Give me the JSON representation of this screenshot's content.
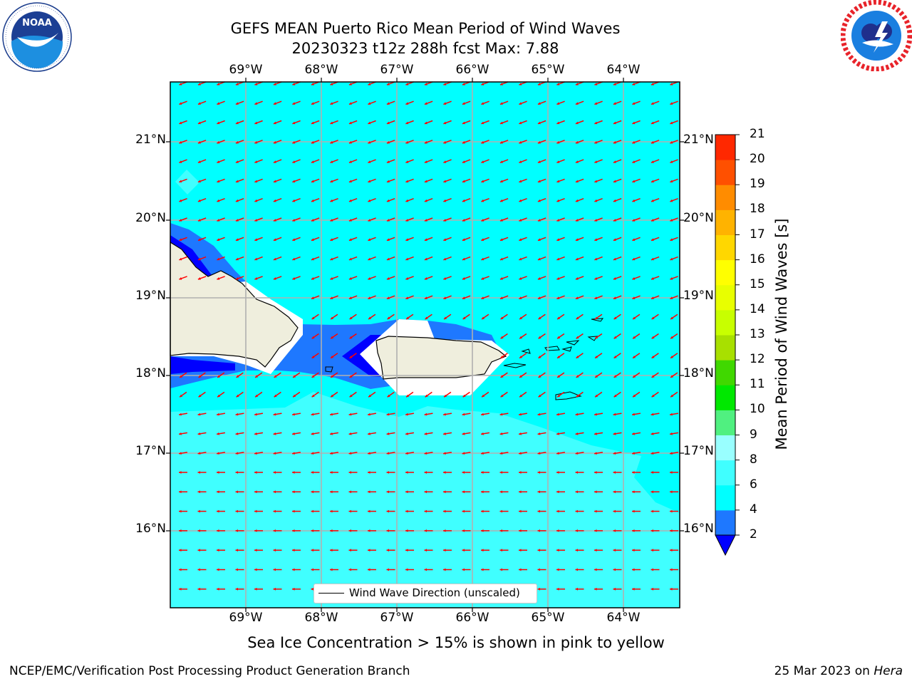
{
  "header": {
    "title_line1": "GEFS MEAN Puerto Rico Mean Period of Wind Waves",
    "title_line2": "20230323 t12z 288h fcst   Max: 7.88"
  },
  "logos": {
    "left": {
      "name": "noaa-logo",
      "text": "NOAA",
      "ring_text": "NATIONAL OCEANIC AND ATMOSPHERIC ADMINISTRATION · U.S. DEPARTMENT OF COMMERCE"
    },
    "right": {
      "name": "nws-logo",
      "ring_text": "NATIONAL WEATHER SERVICE"
    }
  },
  "map": {
    "lon_labels": [
      "69°W",
      "68°W",
      "67°W",
      "66°W",
      "65°W",
      "64°W"
    ],
    "lat_labels": [
      "21°N",
      "20°N",
      "19°N",
      "18°N",
      "17°N",
      "16°N"
    ],
    "extent": {
      "lon_min": -70.0,
      "lon_max": -63.25,
      "lat_min": 15.0,
      "lat_max": 21.75
    },
    "grid": true,
    "ocean_color": "#00ffff",
    "land_color": "#efeedd",
    "vector_color": "#ff0000"
  },
  "legend": {
    "label": "Wind Wave Direction (unscaled)"
  },
  "colorbar": {
    "label": "Mean Period of Wind Waves [s]",
    "ticks": [
      "2",
      "4",
      "6",
      "8",
      "9",
      "10",
      "11",
      "12",
      "13",
      "14",
      "15",
      "16",
      "17",
      "18",
      "19",
      "20",
      "21"
    ],
    "colors": [
      "#1e78ff",
      "#00ffff",
      "#40ffff",
      "#99ffff",
      "#50f080",
      "#00e800",
      "#40d800",
      "#a8e000",
      "#c8ff00",
      "#e8ff00",
      "#ffff00",
      "#ffd700",
      "#ffb300",
      "#ff8c00",
      "#ff5000",
      "#ff2800",
      "#ff0000"
    ],
    "under_color": "#0000ff"
  },
  "chart_data": {
    "type": "heatmap",
    "title": "GEFS MEAN Puerto Rico Mean Period of Wind Waves",
    "subtitle": "20230323 t12z 288h fcst   Max: 7.88",
    "variable": "Mean Period of Wind Waves [s]",
    "max_value": 7.88,
    "color_levels": [
      2,
      4,
      6,
      8,
      9,
      10,
      11,
      12,
      13,
      14,
      15,
      16,
      17,
      18,
      19,
      20,
      21
    ],
    "x_ticks": [
      "69°W",
      "68°W",
      "67°W",
      "66°W",
      "65°W",
      "64°W"
    ],
    "y_ticks": [
      "21°N",
      "20°N",
      "19°N",
      "18°N",
      "17°N",
      "16°N"
    ],
    "vector_field": "Wind Wave Direction (unscaled)"
  },
  "footer": {
    "caption": "Sea Ice Concentration > 15% is shown in pink to yellow",
    "left": "NCEP/EMC/Verification Post Processing Product Generation Branch",
    "date": "25 Mar 2023 on ",
    "host": "Hera"
  }
}
